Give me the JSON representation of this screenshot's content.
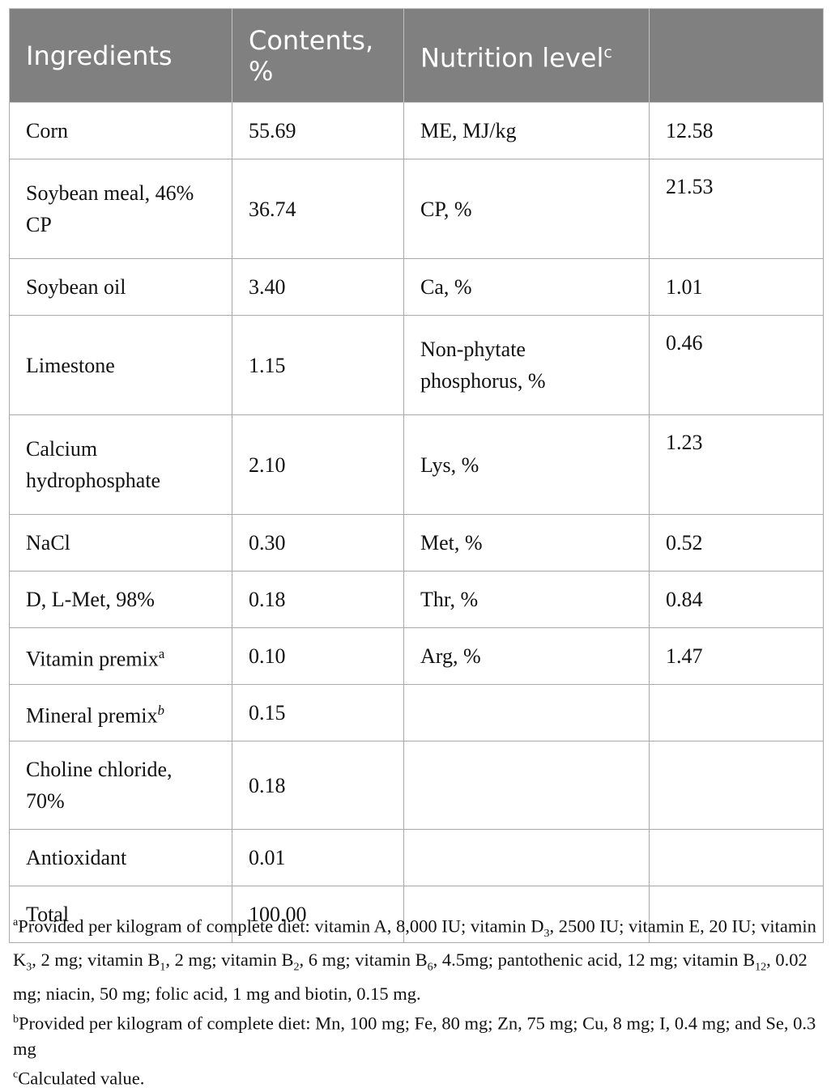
{
  "table": {
    "headers": [
      "Ingredients",
      "Contents, %",
      "Nutrition level",
      "c",
      ""
    ],
    "rows": [
      {
        "ingredient": "Corn",
        "content": "55.69",
        "nutrient": "ME, MJ/kg",
        "level": "12.58"
      },
      {
        "ingredient": "Soybean meal, 46% CP",
        "content": "36.74",
        "nutrient": "CP, %",
        "level": "21.53"
      },
      {
        "ingredient": "Soybean oil",
        "content": "3.40",
        "nutrient": "Ca, %",
        "level": "1.01"
      },
      {
        "ingredient": "Limestone",
        "content": "1.15",
        "nutrient": "Non-phytate phosphorus, %",
        "level": "0.46"
      },
      {
        "ingredient": "Calcium hydrophosphate",
        "content": "2.10",
        "nutrient": "Lys, %",
        "level": "1.23"
      },
      {
        "ingredient": "NaCl",
        "content": "0.30",
        "nutrient": "Met, %",
        "level": "0.52"
      },
      {
        "ingredient": "D, L-Met, 98%",
        "content": "0.18",
        "nutrient": "Thr, %",
        "level": "0.84"
      },
      {
        "ingredient": "Vitamin premix",
        "ingredient_sup": "a",
        "content": "0.10",
        "nutrient": "Arg, %",
        "level": "1.47"
      },
      {
        "ingredient": "Mineral premix",
        "ingredient_sup": "b",
        "content": "0.15",
        "nutrient": "",
        "level": ""
      },
      {
        "ingredient": "Choline chloride, 70%",
        "content": "0.18",
        "nutrient": "",
        "level": ""
      },
      {
        "ingredient": "Antioxidant",
        "content": "0.01",
        "nutrient": "",
        "level": ""
      },
      {
        "ingredient": "Total",
        "content": "100.00",
        "nutrient": "",
        "level": ""
      }
    ]
  },
  "footnotes": {
    "a": {
      "marker": "a",
      "parts": [
        "Provided per kilogram of complete diet: vitamin A, 8,000 IU; vitamin D",
        "3",
        ", 2500 IU; vitamin E, 20 IU; vitamin K",
        "3",
        ", 2 mg; vitamin B",
        "1",
        ", 2 mg; vitamin B",
        "2",
        ", 6 mg; vitamin B",
        "6",
        ", 4.5mg; pantothenic acid, 12 mg; vitamin B",
        "12",
        ", 0.02 mg; niacin, 50 mg; folic acid, 1 mg and biotin, 0.15 mg."
      ]
    },
    "b": {
      "marker": "b",
      "text": "Provided per kilogram of complete diet: Mn, 100 mg; Fe, 80 mg; Zn, 75 mg; Cu, 8 mg; I, 0.4 mg; and Se, 0.3 mg"
    },
    "c": {
      "marker": "c",
      "text": "Calculated value."
    }
  }
}
